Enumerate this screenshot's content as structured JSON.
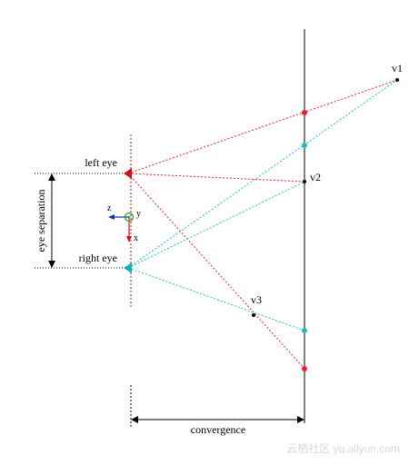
{
  "labels": {
    "left_eye": "left eye",
    "right_eye": "right eye",
    "eye_separation": "eye separation",
    "convergence": "convergence",
    "v1": "v1",
    "v2": "v2",
    "v3": "v3",
    "axis_z": "z",
    "axis_y": "y",
    "axis_x": "x"
  },
  "watermark": "云栖社区 yq.aliyun.com",
  "colors": {
    "left_eye_rays": "#e8202a",
    "right_eye_rays": "#1fbfbf",
    "left_eye_marker": "#d01010",
    "right_eye_marker": "#18b0b8",
    "vertex": "#000000",
    "z_axis": "#1a2db0",
    "y_axis": "#20a020",
    "x_axis": "#d01010"
  }
}
